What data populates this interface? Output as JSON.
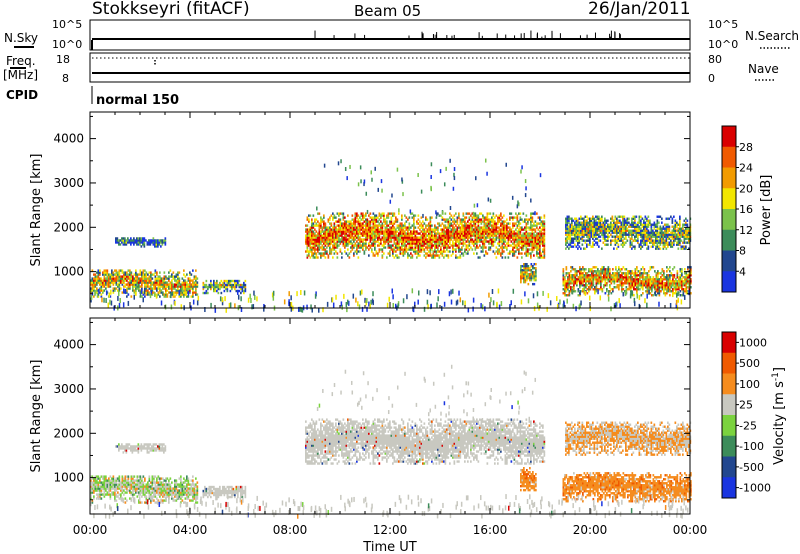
{
  "header": {
    "station": "Stokkseyri (fitACF)",
    "beam": "Beam 05",
    "date": "26/Jan/2011"
  },
  "aux_panel": {
    "nsky_label": "N.Sky",
    "nsky_ticks": [
      "10^5",
      "10^0"
    ],
    "nsearch_label": "N.Search",
    "nsearch_ticks": [
      "10^5",
      "10^0"
    ],
    "freq_label": "Freq.",
    "freq_unit": "[MHz]",
    "freq_ticks": [
      "18",
      "8"
    ],
    "nave_label": "Nave",
    "nave_ticks": [
      "80",
      "0"
    ],
    "cpid_label": "CPID",
    "cpid_value": "normal 150"
  },
  "colors": {
    "power": [
      "#1a35e0",
      "#22478f",
      "#3c8c5a",
      "#7bc24b",
      "#f2e600",
      "#f29b00",
      "#f05a00",
      "#d90000"
    ],
    "velocity": [
      "#1a35e0",
      "#22478f",
      "#3c8c5a",
      "#7bd33f",
      "#c8c8c0",
      "#f58c1e",
      "#f05a00",
      "#d90000"
    ],
    "ground_scatter": "#c8c8c0"
  },
  "chart_data": [
    {
      "type": "heatmap",
      "name": "power",
      "ylabel": "Slant Range [km]",
      "yticks": [
        "1000",
        "2000",
        "3000",
        "4000"
      ],
      "ylim": [
        180,
        4600
      ],
      "xlim": [
        0,
        24
      ],
      "colorbar": {
        "label": "Power [dB]",
        "ticks": [
          "28",
          "24",
          "20",
          "16",
          "12",
          "8",
          "4"
        ]
      },
      "regions": [
        {
          "t": [
            0.0,
            4.3
          ],
          "r": [
            420,
            1050
          ],
          "level": 0.62
        },
        {
          "t": [
            4.5,
            6.2
          ],
          "r": [
            500,
            800
          ],
          "level": 0.45
        },
        {
          "t": [
            1.0,
            3.0
          ],
          "r": [
            1550,
            1750
          ],
          "level": 0.2
        },
        {
          "t": [
            8.6,
            18.2
          ],
          "r": [
            1300,
            2300
          ],
          "level": 0.78
        },
        {
          "t": [
            17.2,
            17.8
          ],
          "r": [
            700,
            1200
          ],
          "level": 0.55
        },
        {
          "t": [
            18.9,
            24.0
          ],
          "r": [
            450,
            1100
          ],
          "level": 0.7
        },
        {
          "t": [
            19.0,
            24.0
          ],
          "r": [
            1500,
            2250
          ],
          "level": 0.45
        }
      ]
    },
    {
      "type": "heatmap",
      "name": "velocity",
      "ylabel": "Slant Range [km]",
      "yticks": [
        "1000",
        "2000",
        "3000",
        "4000"
      ],
      "ylim": [
        180,
        4600
      ],
      "xlim": [
        0,
        24
      ],
      "colorbar": {
        "label": "Velocity [m s",
        "label_sup": "-1",
        "label_end": "]",
        "ticks": [
          "1000",
          "500",
          "100",
          "25",
          "-25",
          "-100",
          "-500",
          "-1000"
        ]
      },
      "regions": [
        {
          "t": [
            0.0,
            4.3
          ],
          "r": [
            420,
            1050
          ],
          "class": "mixed_green"
        },
        {
          "t": [
            4.5,
            6.2
          ],
          "r": [
            500,
            800
          ],
          "class": "ground"
        },
        {
          "t": [
            1.0,
            3.0
          ],
          "r": [
            1550,
            1750
          ],
          "class": "ground"
        },
        {
          "t": [
            8.6,
            18.2
          ],
          "r": [
            1300,
            2300
          ],
          "class": "ground"
        },
        {
          "t": [
            17.2,
            17.8
          ],
          "r": [
            700,
            1200
          ],
          "class": "orange"
        },
        {
          "t": [
            18.9,
            24.0
          ],
          "r": [
            450,
            1100
          ],
          "class": "orange"
        },
        {
          "t": [
            19.0,
            24.0
          ],
          "r": [
            1500,
            2250
          ],
          "class": "mixed_orange"
        }
      ]
    }
  ],
  "xaxis": {
    "ticks": [
      "00:00",
      "04:00",
      "08:00",
      "12:00",
      "16:00",
      "20:00",
      "00:00"
    ],
    "label": "Time UT"
  }
}
